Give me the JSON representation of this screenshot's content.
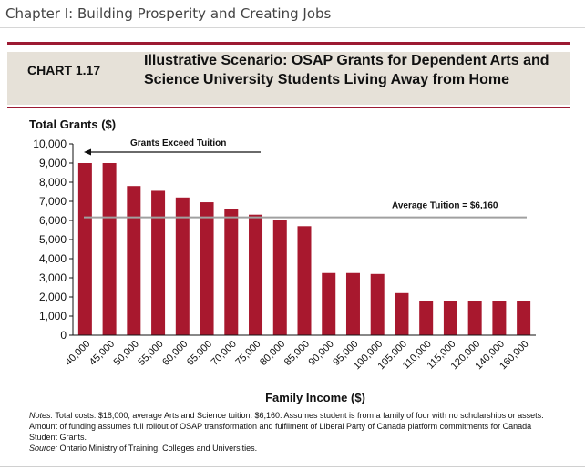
{
  "document": {
    "header": "Chapter I: Building Prosperity and Creating Jobs"
  },
  "chart_meta": {
    "number": "CHART 1.17"
  },
  "chart_data": {
    "type": "bar",
    "title": "Illustrative Scenario: OSAP Grants for Dependent Arts and Science University Students Living Away from Home",
    "ylabel": "Total Grants ($)",
    "xlabel": "Family Income ($)",
    "ylim": [
      0,
      10000
    ],
    "yticks": [
      "0",
      "1,000",
      "2,000",
      "3,000",
      "4,000",
      "5,000",
      "6,000",
      "7,000",
      "8,000",
      "9,000",
      "10,000"
    ],
    "categories": [
      "40,000",
      "45,000",
      "50,000",
      "55,000",
      "60,000",
      "65,000",
      "70,000",
      "75,000",
      "80,000",
      "85,000",
      "90,000",
      "95,000",
      "100,000",
      "105,000",
      "110,000",
      "115,000",
      "120,000",
      "140,000",
      "160,000"
    ],
    "values": [
      9000,
      9000,
      7800,
      7550,
      7200,
      6950,
      6600,
      6300,
      6000,
      5700,
      3250,
      3250,
      3200,
      2200,
      1800,
      1800,
      1800,
      1800,
      1800
    ],
    "bar_color": "#a8182e",
    "reference_line": {
      "value": 6160,
      "label": "Average Tuition = $6,160",
      "color": "#a0a0a0"
    },
    "annotation": {
      "label": "Grants Exceed Tuition"
    },
    "grid": false
  },
  "notes": {
    "notes_label": "Notes:",
    "notes_text": "Total costs: $18,000; average Arts and Science tuition: $6,160. Assumes student is from a family of four with no scholarships or assets. Amount of funding assumes full rollout of OSAP transformation and fulfilment of Liberal Party of Canada platform commitments for Canada Student Grants.",
    "source_label": "Source:",
    "source_text": "Ontario Ministry of Training, Colleges and Universities."
  }
}
